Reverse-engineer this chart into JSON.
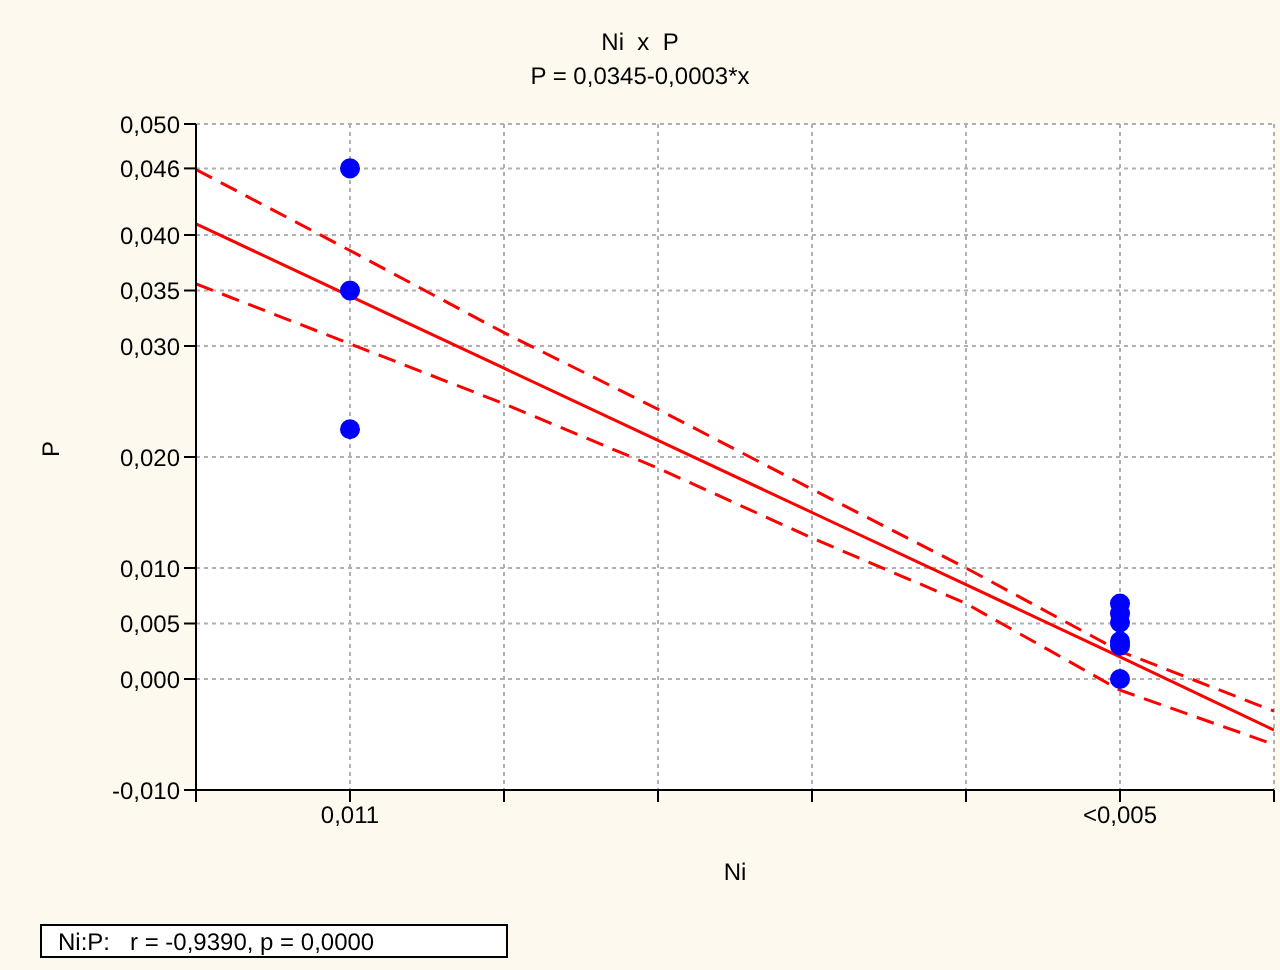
{
  "chart_data": {
    "type": "scatter",
    "title": "Ni  x  P",
    "subtitle": "P = 0,0345-0,0003*x",
    "xlabel": "Ni",
    "ylabel": "P",
    "annotations": [
      "Ni:P:   r = -0,9390, p = 0,0000"
    ],
    "categories": [
      null,
      "0,011",
      null,
      null,
      null,
      null,
      "<0,005",
      null
    ],
    "ylim": [
      -0.01,
      0.05
    ],
    "yticks": [
      {
        "value": -0.01,
        "label": "-0,010"
      },
      {
        "value": 0,
        "label": "0,000"
      },
      {
        "value": 0.005,
        "label": "0,005"
      },
      {
        "value": 0.01,
        "label": "0,010"
      },
      {
        "value": 0.02,
        "label": "0,020"
      },
      {
        "value": 0.03,
        "label": "0,030"
      },
      {
        "value": 0.035,
        "label": "0,035"
      },
      {
        "value": 0.04,
        "label": "0,040"
      },
      {
        "value": 0.046,
        "label": "0,046"
      },
      {
        "value": 0.05,
        "label": "0,050"
      }
    ],
    "grid": true,
    "series": [
      {
        "color": "#0000ff",
        "marker": "circle",
        "x": [
          "0,011",
          "0,011",
          "0,011",
          "<0,005",
          "<0,005",
          "<0,005",
          "<0,005",
          "<0,005",
          "<0,005"
        ],
        "values": [
          0.046,
          0.035,
          0.0225,
          0.0068,
          0.0059,
          0.0051,
          0.0034,
          0.003,
          0
        ]
      },
      {
        "type": "line",
        "color": "#ff0000",
        "line_style": "solid",
        "marker": "none",
        "values": [
          0.041,
          0.0345,
          0.028,
          0.0215,
          0.015,
          0.0085,
          0.002,
          -0.0046
        ]
      },
      {
        "type": "line",
        "color": "#ff0000",
        "line_style": "dashed",
        "marker": "none",
        "values": [
          0.0459,
          0.0386,
          0.0312,
          0.0243,
          0.0171,
          0.01,
          0.0025,
          -0.0029
        ]
      },
      {
        "type": "line",
        "color": "#ff0000",
        "line_style": "dashed",
        "marker": "none",
        "values": [
          0.0356,
          0.0302,
          0.0248,
          0.019,
          0.0127,
          0.0068,
          -0.001,
          -0.0059
        ]
      }
    ]
  }
}
